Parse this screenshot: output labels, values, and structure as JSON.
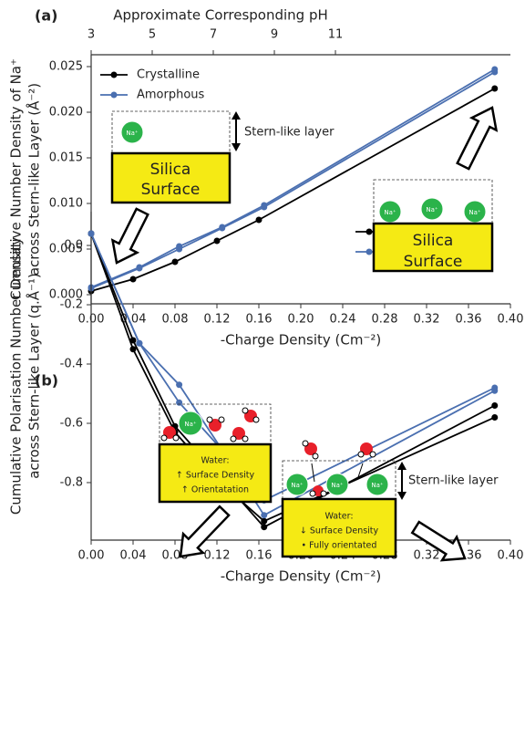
{
  "chart_data": [
    {
      "type": "line",
      "panel_label": "(a)",
      "xlabel": "-Charge Density (Cm⁻²)",
      "ylabel": [
        "Cumulative Number Density of Na⁺",
        "across Stern-like Layer (Å⁻²)"
      ],
      "x2label": "Approximate Corresponding pH",
      "xlim": [
        0,
        0.4
      ],
      "xticks": [
        {
          "value": 0,
          "label": "0.00"
        },
        {
          "value": 0.04,
          "label": "0.04"
        },
        {
          "value": 0.08,
          "label": "0.08"
        },
        {
          "value": 0.12,
          "label": "0.12"
        },
        {
          "value": 0.16,
          "label": "0.16"
        },
        {
          "value": 0.2,
          "label": "0.20"
        },
        {
          "value": 0.24,
          "label": "0.24"
        },
        {
          "value": 0.28,
          "label": "0.28"
        },
        {
          "value": 0.32,
          "label": "0.32"
        },
        {
          "value": 0.36,
          "label": "0.36"
        },
        {
          "value": 0.4,
          "label": "0.40"
        }
      ],
      "x2lim": [
        3,
        16.73
      ],
      "x2ticks": [
        3,
        5,
        7,
        9,
        11
      ],
      "ylim": [
        -0.001,
        0.0263
      ],
      "yticks": [
        {
          "value": 0,
          "label": "0.000"
        },
        {
          "value": 0.005,
          "label": "0.005"
        },
        {
          "value": 0.01,
          "label": "0.010"
        },
        {
          "value": 0.015,
          "label": "0.015"
        },
        {
          "value": 0.02,
          "label": "0.020"
        },
        {
          "value": 0.025,
          "label": "0.025"
        }
      ],
      "legend": "upper left",
      "series": [
        {
          "name": "Crystalline",
          "color": "#000000",
          "x": [
            0,
            0.04,
            0.08,
            0.12,
            0.16,
            0.385
          ],
          "values": [
            0.0004,
            0.0017,
            0.0036,
            0.0059,
            0.0082,
            0.0226
          ]
        },
        {
          "name": "Amorphous",
          "color": "#4a6fb0",
          "x": [
            0,
            0.046,
            0.084,
            0.125,
            0.165,
            0.385
          ],
          "values": [
            0.0008,
            0.003,
            0.0053,
            0.0074,
            0.0098,
            0.0247
          ]
        },
        {
          "name": "Amorphous",
          "color": "#4a6fb0",
          "x": [
            0,
            0.046,
            0.084,
            0.125,
            0.165,
            0.385
          ],
          "values": [
            0.0007,
            0.0029,
            0.005,
            0.0073,
            0.0096,
            0.0244
          ]
        }
      ],
      "annotations": [
        "Stern-like layer",
        "Silica",
        "Surface",
        "Na⁺",
        "Silica",
        "Surface",
        "Na⁺",
        "Na⁺",
        "Na⁺"
      ]
    },
    {
      "type": "line",
      "panel_label": "(b)",
      "xlabel": "-Charge Density (Cm⁻²)",
      "ylabel": [
        "Cumulative Polarisation Number Density",
        "across Stern-like Layer (q.Å⁻¹)"
      ],
      "xlim": [
        0,
        0.4
      ],
      "xticks": [
        {
          "value": 0,
          "label": "0.00"
        },
        {
          "value": 0.04,
          "label": "0.04"
        },
        {
          "value": 0.08,
          "label": "0.08"
        },
        {
          "value": 0.12,
          "label": "0.12"
        },
        {
          "value": 0.16,
          "label": "0.16"
        },
        {
          "value": 0.2,
          "label": "0.20"
        },
        {
          "value": 0.24,
          "label": "0.24"
        },
        {
          "value": 0.28,
          "label": "0.28"
        },
        {
          "value": 0.32,
          "label": "0.32"
        },
        {
          "value": 0.36,
          "label": "0.36"
        },
        {
          "value": 0.4,
          "label": "0.40"
        }
      ],
      "ylim": [
        -0.994,
        0.114
      ],
      "yticks": [
        {
          "value": 0,
          "label": "0.0"
        },
        {
          "value": -0.2,
          "label": "-0.2"
        },
        {
          "value": -0.4,
          "label": "-0.4"
        },
        {
          "value": -0.6,
          "label": "-0.6"
        },
        {
          "value": -0.8,
          "label": "-0.8"
        }
      ],
      "legend": "upper right",
      "series": [
        {
          "name": "Crystalline",
          "color": "#000000",
          "x": [
            0,
            0.04,
            0.08,
            0.12,
            0.165,
            0.385
          ],
          "values": [
            0.04,
            -0.32,
            -0.61,
            -0.77,
            -0.95,
            -0.54
          ]
        },
        {
          "name": "Crystalline",
          "color": "#000000",
          "x": [
            0,
            0.04,
            0.08,
            0.12,
            0.165,
            0.385
          ],
          "values": [
            0.04,
            -0.35,
            -0.63,
            -0.79,
            -0.93,
            -0.58
          ]
        },
        {
          "name": "Amorphous",
          "color": "#4a6fb0",
          "x": [
            0,
            0.046,
            0.084,
            0.125,
            0.165,
            0.385
          ],
          "values": [
            0.04,
            -0.33,
            -0.47,
            -0.69,
            -0.86,
            -0.48
          ]
        },
        {
          "name": "Amorphous",
          "color": "#4a6fb0",
          "x": [
            0,
            0.046,
            0.084,
            0.125,
            0.165,
            0.385
          ],
          "values": [
            0.04,
            -0.33,
            -0.53,
            -0.69,
            -0.91,
            -0.49
          ]
        }
      ],
      "annotations": [
        "Water:",
        "↑ Surface Density",
        "↑ Orientatation",
        "Na⁺",
        "Water:",
        "↓ Surface Density",
        "•  Fully orientated",
        "Stern-like layer",
        "Na⁺",
        "Na⁺",
        "Na⁺"
      ]
    }
  ]
}
